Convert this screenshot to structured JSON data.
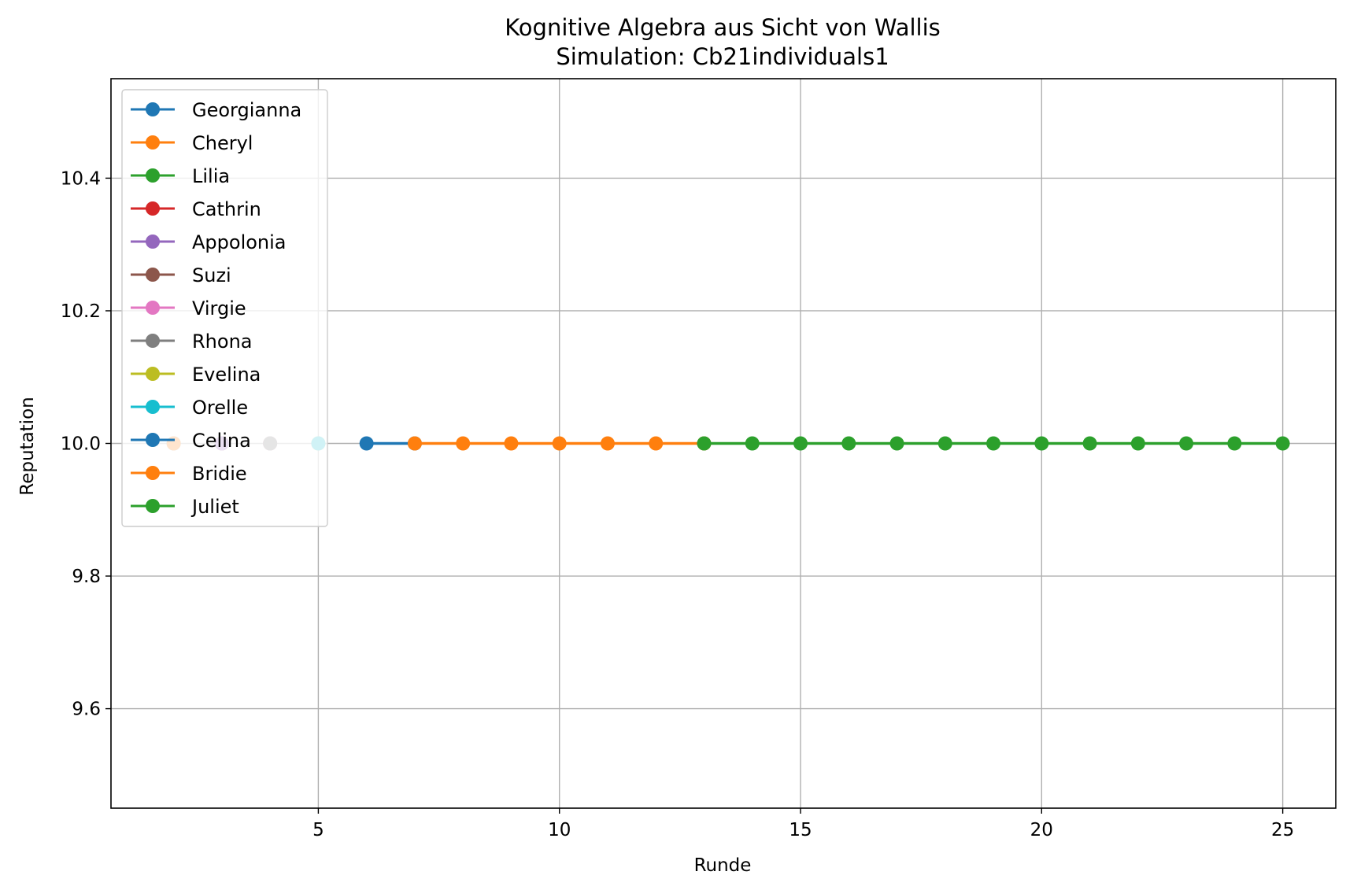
{
  "chart_data": {
    "type": "line",
    "title": "Kognitive Algebra aus Sicht von Wallis",
    "subtitle": "Simulation: Cb21individuals1",
    "xlabel": "Runde",
    "ylabel": "Reputation",
    "xlim": [
      0.7,
      26.1
    ],
    "ylim": [
      9.45,
      10.55
    ],
    "xticks": [
      5,
      10,
      15,
      20,
      25
    ],
    "xtick_labels": [
      "5",
      "10",
      "15",
      "20",
      "25"
    ],
    "yticks": [
      9.6,
      9.8,
      10.0,
      10.2,
      10.4
    ],
    "ytick_labels": [
      "9.6",
      "9.8",
      "10.0",
      "10.2",
      "10.4"
    ],
    "grid": true,
    "legend_position": "upper-left",
    "series": [
      {
        "name": "Georgianna",
        "color": "#1f77b4",
        "x": [
          2
        ],
        "y": [
          10.0
        ]
      },
      {
        "name": "Cheryl",
        "color": "#ff7f0e",
        "x": [
          2
        ],
        "y": [
          10.0
        ]
      },
      {
        "name": "Lilia",
        "color": "#2ca02c",
        "x": [
          3
        ],
        "y": [
          10.0
        ]
      },
      {
        "name": "Cathrin",
        "color": "#d62728",
        "x": [
          3
        ],
        "y": [
          10.0
        ]
      },
      {
        "name": "Appolonia",
        "color": "#9467bd",
        "x": [
          3
        ],
        "y": [
          10.0
        ]
      },
      {
        "name": "Suzi",
        "color": "#8c564b",
        "x": [
          4
        ],
        "y": [
          10.0
        ]
      },
      {
        "name": "Virgie",
        "color": "#e377c2",
        "x": [
          4
        ],
        "y": [
          10.0
        ]
      },
      {
        "name": "Rhona",
        "color": "#7f7f7f",
        "x": [
          4
        ],
        "y": [
          10.0
        ]
      },
      {
        "name": "Evelina",
        "color": "#bcbd22",
        "x": [
          5
        ],
        "y": [
          10.0
        ]
      },
      {
        "name": "Orelle",
        "color": "#17becf",
        "x": [
          5
        ],
        "y": [
          10.0
        ]
      },
      {
        "name": "Celina",
        "color": "#1f77b4",
        "x": [
          6,
          7
        ],
        "y": [
          10.0,
          10.0
        ]
      },
      {
        "name": "Bridie",
        "color": "#ff7f0e",
        "x": [
          7,
          8,
          9,
          10,
          11,
          12,
          13
        ],
        "y": [
          10.0,
          10.0,
          10.0,
          10.0,
          10.0,
          10.0,
          10.0
        ]
      },
      {
        "name": "Juliet",
        "color": "#2ca02c",
        "x": [
          13,
          14,
          15,
          16,
          17,
          18,
          19,
          20,
          21,
          22,
          23,
          24,
          25
        ],
        "y": [
          10.0,
          10.0,
          10.0,
          10.0,
          10.0,
          10.0,
          10.0,
          10.0,
          10.0,
          10.0,
          10.0,
          10.0,
          10.0
        ]
      }
    ]
  }
}
